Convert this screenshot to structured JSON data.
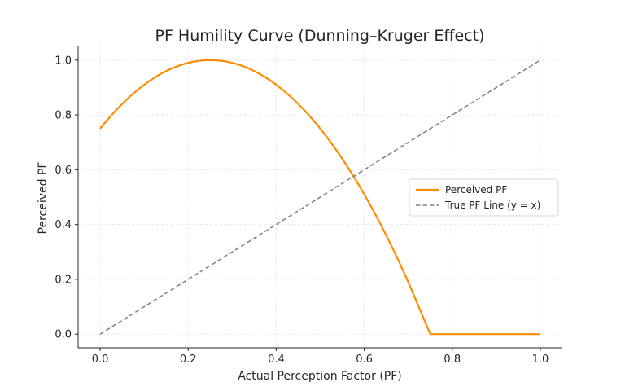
{
  "chart_data": {
    "type": "line",
    "title": "PF Humility Curve (Dunning–Kruger Effect)",
    "xlabel": "Actual Perception Factor (PF)",
    "ylabel": "Perceived PF",
    "xlim": [
      -0.05,
      1.05
    ],
    "ylim": [
      -0.05,
      1.05
    ],
    "xticks": [
      0.0,
      0.2,
      0.4,
      0.6,
      0.8,
      1.0
    ],
    "yticks": [
      0.0,
      0.2,
      0.4,
      0.6,
      0.8,
      1.0
    ],
    "xtick_labels": [
      "0.0",
      "0.2",
      "0.4",
      "0.6",
      "0.8",
      "1.0"
    ],
    "ytick_labels": [
      "0.0",
      "0.2",
      "0.4",
      "0.6",
      "0.8",
      "1.0"
    ],
    "grid": true,
    "legend_position": "center-right",
    "series": [
      {
        "name": "Perceived PF",
        "color": "#ff8c00",
        "style": "solid",
        "x": [
          0.0,
          0.05,
          0.1,
          0.15,
          0.2,
          0.25,
          0.3,
          0.35,
          0.4,
          0.45,
          0.5,
          0.55,
          0.6,
          0.65,
          0.7,
          0.75,
          0.8,
          0.85,
          0.9,
          0.95,
          1.0
        ],
        "y": [
          0.75,
          0.84,
          0.91,
          0.96,
          0.99,
          1.0,
          0.99,
          0.96,
          0.91,
          0.84,
          0.75,
          0.64,
          0.51,
          0.36,
          0.19,
          0.0,
          0.0,
          0.0,
          0.0,
          0.0,
          0.0
        ]
      },
      {
        "name": "True PF Line (y = x)",
        "color": "#808080",
        "style": "dashed",
        "x": [
          0.0,
          1.0
        ],
        "y": [
          0.0,
          1.0
        ]
      }
    ]
  }
}
